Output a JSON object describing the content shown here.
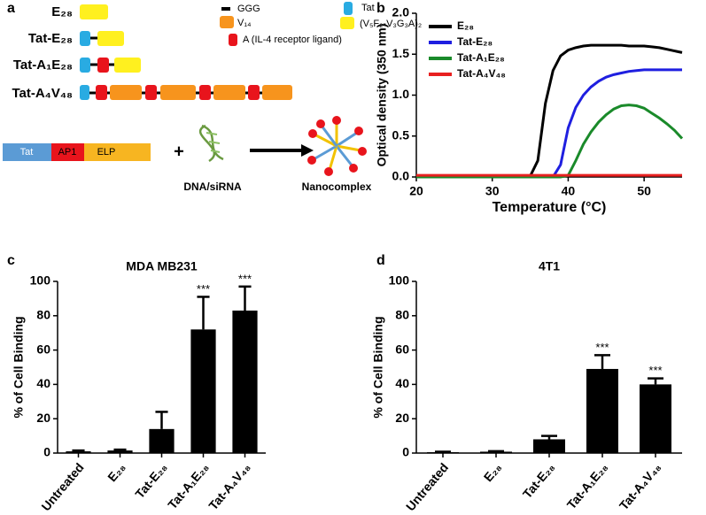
{
  "figure_a": {
    "panel_label": "a",
    "constructs": [
      "E₂₈",
      "Tat-E₂₈",
      "Tat-A₁E₂₈",
      "Tat-A₄V₄₈"
    ],
    "legend": [
      "GGG",
      "Tat",
      "V₁₄",
      "(V₅F₂-V₃G₃A)₂",
      "A (IL-4 receptor ligand)"
    ],
    "scheme": {
      "segments": [
        "Tat",
        "AP1",
        "ELP"
      ],
      "plus": "+",
      "cargo": "DNA/siRNA",
      "product": "Nanocomplex"
    }
  },
  "chart_data": [
    {
      "type": "line",
      "panel_label": "b",
      "x_label": "Temperature (°C)",
      "y_label": "Optical density (350 nm)",
      "x": [
        20,
        30,
        35,
        36,
        37,
        38,
        39,
        40,
        41,
        42,
        43,
        44,
        45,
        46,
        47,
        48,
        49,
        50,
        51,
        52,
        53,
        54,
        55
      ],
      "xlim": [
        20,
        55
      ],
      "xticks": [
        20,
        30,
        40,
        50
      ],
      "ylim": [
        0,
        2
      ],
      "yticks": [
        {
          "value": 0,
          "label": "0.0"
        },
        0.5,
        {
          "value": 1,
          "label": "1.0"
        },
        1.5,
        {
          "value": 2,
          "label": "2.0"
        }
      ],
      "series": [
        {
          "name": "E₂₈",
          "color": "#000000",
          "values": [
            0,
            0,
            0.01,
            0.2,
            0.9,
            1.3,
            1.48,
            1.55,
            1.58,
            1.6,
            1.61,
            1.61,
            1.61,
            1.61,
            1.61,
            1.6,
            1.6,
            1.6,
            1.59,
            1.58,
            1.56,
            1.54,
            1.52
          ]
        },
        {
          "name": "Tat-E₂₈",
          "color": "#1f1fe0",
          "values": [
            0,
            0,
            0,
            0,
            0,
            0,
            0.15,
            0.6,
            0.85,
            1.0,
            1.1,
            1.17,
            1.22,
            1.25,
            1.27,
            1.29,
            1.3,
            1.31,
            1.31,
            1.31,
            1.31,
            1.31,
            1.31
          ]
        },
        {
          "name": "Tat-A₁E₂₈",
          "color": "#1a8a2a",
          "values": [
            0,
            0,
            0,
            0,
            0,
            0,
            0,
            0.02,
            0.2,
            0.4,
            0.55,
            0.67,
            0.76,
            0.83,
            0.87,
            0.88,
            0.87,
            0.84,
            0.78,
            0.72,
            0.65,
            0.57,
            0.47
          ]
        },
        {
          "name": "Tat-A₄V₄₈",
          "color": "#e82020",
          "values": [
            0.02,
            0.02,
            0.02,
            0.02,
            0.02,
            0.02,
            0.02,
            0.02,
            0.02,
            0.02,
            0.02,
            0.02,
            0.02,
            0.02,
            0.02,
            0.02,
            0.02,
            0.02,
            0.02,
            0.02,
            0.02,
            0.02,
            0.02
          ]
        }
      ]
    },
    {
      "type": "bar",
      "panel_label": "c",
      "title": "MDA MB231",
      "y_label": "% of Cell Binding",
      "color": "#000000",
      "categories": [
        "Untreated",
        "E₂₈",
        "Tat-E₂₈",
        "Tat-A₁E₂₈",
        "Tat-A₄V₄₈"
      ],
      "values": [
        1,
        1.5,
        14,
        72,
        83
      ],
      "errors": [
        0.5,
        0.5,
        10,
        19,
        14
      ],
      "significance": [
        null,
        null,
        null,
        "***",
        "***"
      ],
      "ylim": [
        0,
        100
      ],
      "yticks": [
        0,
        20,
        40,
        60,
        80,
        100
      ]
    },
    {
      "type": "bar",
      "panel_label": "d",
      "title": "4T1",
      "y_label": "% of Cell Binding",
      "color": "#000000",
      "categories": [
        "Untreated",
        "E₂₈",
        "Tat-E₂₈",
        "Tat-A₁E₂₈",
        "Tat-A₄V₄₈"
      ],
      "values": [
        0.5,
        0.8,
        8,
        49,
        40
      ],
      "errors": [
        0.3,
        0.3,
        2,
        8,
        3.5
      ],
      "significance": [
        null,
        null,
        null,
        "***",
        "***"
      ],
      "ylim": [
        0,
        100
      ],
      "yticks": [
        0,
        20,
        40,
        60,
        80,
        100
      ]
    }
  ]
}
